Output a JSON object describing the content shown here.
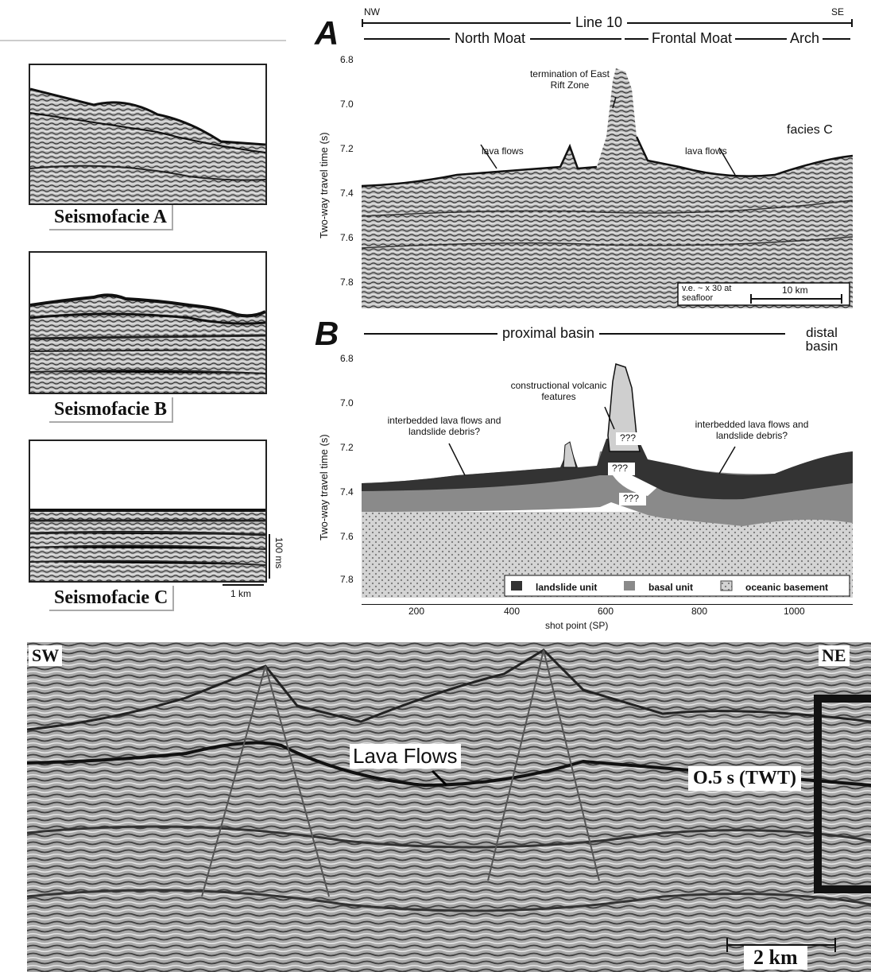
{
  "left_panel": {
    "facies": [
      {
        "label": "Seismofacie A"
      },
      {
        "label": "Seismofacie B"
      },
      {
        "label": "Seismofacie C"
      }
    ],
    "scale_vertical": "100 ms",
    "scale_horizontal": "1 km"
  },
  "panel_a": {
    "letter": "A",
    "nw": "NW",
    "se": "SE",
    "line": "Line 10",
    "north_moat": "North Moat",
    "frontal_moat": "Frontal Moat",
    "arch": "Arch",
    "ylabel": "Two-way travel time (s)",
    "yticks": [
      "6.8",
      "7.0",
      "7.2",
      "7.4",
      "7.6",
      "7.8"
    ],
    "ann_termination": "termination of East Rift Zone",
    "ann_lava1": "lava flows",
    "ann_lava2": "lava flows",
    "ann_facies": "facies C",
    "ve": "v.e. ~ x 30 at seafloor",
    "scale": "10 km"
  },
  "panel_b": {
    "letter": "B",
    "proximal": "proximal basin",
    "distal": "distal basin",
    "ylabel": "Two-way travel time (s)",
    "yticks": [
      "6.8",
      "7.0",
      "7.2",
      "7.4",
      "7.6",
      "7.8"
    ],
    "xticks": [
      "200",
      "400",
      "600",
      "800",
      "1000"
    ],
    "xlabel": "shot point (SP)",
    "ann_constructional": "constructional volcanic features",
    "ann_left": "interbedded lava flows and landslide debris?",
    "ann_right": "interbedded lava flows and landslide debris?",
    "q1": "???",
    "q2": "???",
    "q3": "???",
    "legend": [
      "landslide unit",
      "basal unit",
      "oceanic basement"
    ],
    "colors": {
      "landslide": "#333333",
      "basal": "#8a8a8a",
      "basement": "#cfcfcf"
    }
  },
  "bottom_panel": {
    "sw": "SW",
    "ne": "NE",
    "lava": "Lava Flows",
    "twt": "O.5 s (TWT)",
    "scale": "2 km"
  }
}
